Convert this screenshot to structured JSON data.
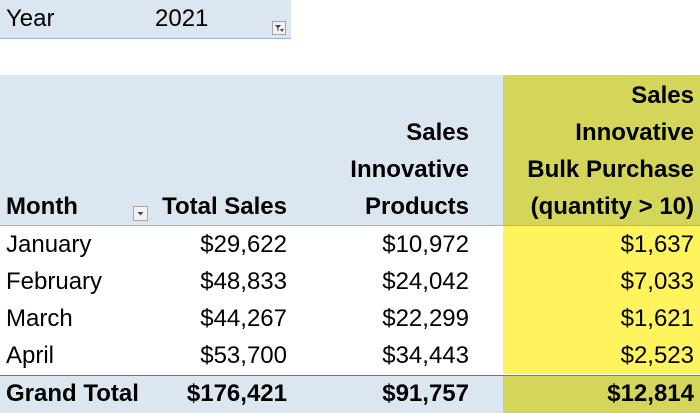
{
  "report_filter": {
    "label": "Year",
    "value": "2021"
  },
  "headers": {
    "month": "Month",
    "total_sales": "Total Sales",
    "innovative_products": [
      "Sales",
      "Innovative",
      "Products"
    ],
    "bulk_purchase": [
      "Sales",
      "Innovative",
      "Bulk Purchase",
      "(quantity > 10)"
    ]
  },
  "rows": [
    {
      "month": "January",
      "total_sales": "$29,622",
      "innovative_products": "$10,972",
      "bulk_purchase": "$1,637"
    },
    {
      "month": "February",
      "total_sales": "$48,833",
      "innovative_products": "$24,042",
      "bulk_purchase": "$7,033"
    },
    {
      "month": "March",
      "total_sales": "$44,267",
      "innovative_products": "$22,299",
      "bulk_purchase": "$1,621"
    },
    {
      "month": "April",
      "total_sales": "$53,700",
      "innovative_products": "$34,443",
      "bulk_purchase": "$2,523"
    }
  ],
  "grand_total": {
    "label": "Grand Total",
    "total_sales": "$176,421",
    "innovative_products": "$91,757",
    "bulk_purchase": "$12,814"
  },
  "icons": {
    "filter_button": "filter-icon",
    "month_dropdown": "dropdown-arrow-icon"
  },
  "colors": {
    "header_band": "#dce6f1",
    "highlight_header": "#d4d65a",
    "highlight_cells": "#fff35e",
    "border_blue": "#95b3d7"
  }
}
